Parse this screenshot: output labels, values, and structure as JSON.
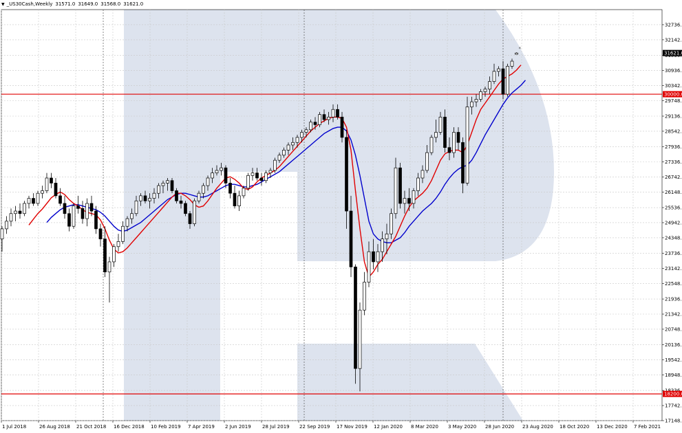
{
  "window": {
    "title": "_US30Cash,Weekly",
    "ohlc": [
      "31571.0",
      "31649.0",
      "31568.0",
      "31621.0"
    ]
  },
  "colors": {
    "background": "#ffffff",
    "grid": "#c8c8c8",
    "candle_border": "#000000",
    "bull_fill": "#ffffff",
    "bear_fill": "#000000",
    "fast_ma": "#e00000",
    "slow_ma": "#0000cc",
    "level_line": "#e00000",
    "level_label_bg": "#e00000",
    "price_label_bg": "#000000",
    "watermark": "#dde3ee"
  },
  "chart_data": {
    "type": "candlestick",
    "symbol": "_US30Cash",
    "timeframe": "Weekly",
    "ylim": [
      17148,
      33330
    ],
    "y_ticks": [
      "32736.0",
      "32142.0",
      "31530.0",
      "30936.0",
      "30342.0",
      "29748.0",
      "29136.0",
      "28542.0",
      "27936.0",
      "27336.0",
      "26742.0",
      "26148.0",
      "25536.0",
      "24942.0",
      "24348.0",
      "23736.0",
      "23142.0",
      "22548.0",
      "21936.0",
      "21342.0",
      "20748.0",
      "20136.0",
      "19542.0",
      "18948.0",
      "18336.0",
      "17742.0",
      "17148.0"
    ],
    "x_ticks": [
      "1 Jul 2018",
      "26 Aug 2018",
      "21 Oct 2018",
      "16 Dec 2018",
      "10 Feb 2019",
      "7 Apr 2019",
      "2 Jun 2019",
      "28 Jul 2019",
      "22 Sep 2019",
      "17 Nov 2019",
      "12 Jan 2020",
      "8 Mar 2020",
      "3 May 2020",
      "28 Jun 2020",
      "23 Aug 2020",
      "18 Oct 2020",
      "13 Dec 2020",
      "7 Feb 2021"
    ],
    "levels": [
      {
        "value": 30000,
        "label": "30000.0"
      },
      {
        "value": 18200,
        "label": "18200.0"
      }
    ],
    "last_price": {
      "value": 31621,
      "label": "31621.0"
    },
    "candles": [
      [
        24300,
        24800,
        23800,
        24700
      ],
      [
        24700,
        25200,
        24500,
        25000
      ],
      [
        25000,
        25500,
        24800,
        25300
      ],
      [
        25300,
        25600,
        25000,
        25400
      ],
      [
        25400,
        25700,
        25100,
        25300
      ],
      [
        25300,
        25800,
        25200,
        25700
      ],
      [
        25700,
        26000,
        25500,
        25900
      ],
      [
        25900,
        26100,
        25600,
        25700
      ],
      [
        25700,
        26200,
        25600,
        26100
      ],
      [
        26100,
        26400,
        25900,
        26200
      ],
      [
        26200,
        26900,
        26100,
        26700
      ],
      [
        26700,
        26900,
        26300,
        26500
      ],
      [
        26500,
        26700,
        25900,
        26000
      ],
      [
        26000,
        26300,
        25600,
        25700
      ],
      [
        25700,
        26000,
        25100,
        25300
      ],
      [
        25300,
        25500,
        24600,
        24800
      ],
      [
        24800,
        25700,
        24700,
        25600
      ],
      [
        25600,
        26000,
        25300,
        25500
      ],
      [
        25500,
        25800,
        24900,
        25100
      ],
      [
        25100,
        25900,
        24800,
        25700
      ],
      [
        25700,
        26000,
        25200,
        25400
      ],
      [
        25400,
        25600,
        24500,
        24700
      ],
      [
        24700,
        24900,
        24000,
        24300
      ],
      [
        24300,
        24800,
        22800,
        23000
      ],
      [
        23000,
        23600,
        21800,
        23400
      ],
      [
        23400,
        24100,
        23200,
        24000
      ],
      [
        24000,
        24500,
        23800,
        24200
      ],
      [
        24200,
        25000,
        24100,
        24800
      ],
      [
        24800,
        25200,
        24600,
        25100
      ],
      [
        25100,
        25500,
        24900,
        25300
      ],
      [
        25300,
        26000,
        25200,
        25800
      ],
      [
        25800,
        26100,
        25600,
        26000
      ],
      [
        26000,
        26200,
        25700,
        25800
      ],
      [
        25800,
        26100,
        25500,
        25900
      ],
      [
        25900,
        26300,
        25700,
        26100
      ],
      [
        26100,
        26500,
        25900,
        26400
      ],
      [
        26400,
        26600,
        26100,
        26500
      ],
      [
        26500,
        26700,
        26200,
        26600
      ],
      [
        26600,
        26700,
        26100,
        26200
      ],
      [
        26200,
        26300,
        25700,
        25800
      ],
      [
        25800,
        26000,
        25500,
        25700
      ],
      [
        25700,
        25800,
        25200,
        25300
      ],
      [
        25300,
        25400,
        24700,
        24900
      ],
      [
        24900,
        25900,
        24800,
        25800
      ],
      [
        25800,
        26200,
        25700,
        26100
      ],
      [
        26100,
        26500,
        25900,
        26400
      ],
      [
        26400,
        26800,
        26200,
        26700
      ],
      [
        26700,
        27100,
        26500,
        26900
      ],
      [
        26900,
        27200,
        26800,
        27000
      ],
      [
        27000,
        27300,
        26800,
        27100
      ],
      [
        27100,
        27200,
        26300,
        26500
      ],
      [
        26500,
        26700,
        25900,
        26100
      ],
      [
        26100,
        26400,
        25500,
        25600
      ],
      [
        25600,
        26200,
        25400,
        26000
      ],
      [
        26000,
        26400,
        25900,
        26300
      ],
      [
        26300,
        26900,
        26200,
        26800
      ],
      [
        26800,
        27100,
        26600,
        26900
      ],
      [
        26900,
        27100,
        26600,
        26700
      ],
      [
        26700,
        26900,
        26400,
        26600
      ],
      [
        26600,
        27000,
        26500,
        26900
      ],
      [
        26900,
        27100,
        26700,
        27000
      ],
      [
        27000,
        27500,
        26900,
        27400
      ],
      [
        27400,
        27700,
        27300,
        27600
      ],
      [
        27600,
        27900,
        27500,
        27800
      ],
      [
        27800,
        28100,
        27600,
        28000
      ],
      [
        28000,
        28300,
        27800,
        28100
      ],
      [
        28100,
        28400,
        27900,
        28300
      ],
      [
        28300,
        28600,
        28100,
        28500
      ],
      [
        28500,
        28700,
        28300,
        28600
      ],
      [
        28600,
        29000,
        28500,
        28900
      ],
      [
        28900,
        29100,
        28600,
        28800
      ],
      [
        28800,
        29300,
        28700,
        29200
      ],
      [
        29200,
        29400,
        28900,
        29000
      ],
      [
        29000,
        29300,
        28800,
        29100
      ],
      [
        29100,
        29600,
        28900,
        29400
      ],
      [
        29400,
        29600,
        29000,
        29100
      ],
      [
        29100,
        29300,
        28100,
        28300
      ],
      [
        28300,
        28600,
        24700,
        25400
      ],
      [
        25400,
        26000,
        22800,
        23200
      ],
      [
        23200,
        23300,
        18600,
        19200
      ],
      [
        19200,
        21800,
        18300,
        21500
      ],
      [
        21500,
        23000,
        21300,
        22600
      ],
      [
        22600,
        24200,
        22400,
        23800
      ],
      [
        23800,
        24300,
        23100,
        23400
      ],
      [
        23400,
        24100,
        23000,
        23800
      ],
      [
        23800,
        24600,
        23400,
        24300
      ],
      [
        24300,
        24900,
        23700,
        24500
      ],
      [
        24500,
        25500,
        24300,
        25300
      ],
      [
        25300,
        27500,
        25100,
        27100
      ],
      [
        27100,
        27300,
        25500,
        25700
      ],
      [
        25700,
        26200,
        25300,
        25900
      ],
      [
        25900,
        26300,
        25400,
        25700
      ],
      [
        25700,
        26300,
        25500,
        26200
      ],
      [
        26200,
        26900,
        26000,
        26700
      ],
      [
        26700,
        27200,
        26500,
        27000
      ],
      [
        27000,
        28000,
        26900,
        27700
      ],
      [
        27700,
        28400,
        27600,
        28300
      ],
      [
        28300,
        29000,
        28100,
        28500
      ],
      [
        28500,
        29300,
        28400,
        29100
      ],
      [
        29100,
        29400,
        27700,
        27900
      ],
      [
        27900,
        28300,
        27400,
        27700
      ],
      [
        27700,
        28700,
        27500,
        28500
      ],
      [
        28500,
        28700,
        27800,
        28100
      ],
      [
        28100,
        28300,
        26100,
        26500
      ],
      [
        26500,
        29900,
        26400,
        29500
      ],
      [
        29500,
        29900,
        29200,
        29700
      ],
      [
        29700,
        30000,
        29500,
        29800
      ],
      [
        29800,
        30200,
        29700,
        30100
      ],
      [
        30100,
        30300,
        29900,
        30200
      ],
      [
        30200,
        30700,
        30000,
        30500
      ],
      [
        30500,
        31200,
        30400,
        30900
      ],
      [
        30900,
        31100,
        30700,
        31000
      ],
      [
        31000,
        31300,
        29800,
        30000
      ],
      [
        30000,
        31200,
        29900,
        31100
      ],
      [
        31100,
        31400,
        31000,
        31300
      ],
      [
        31571,
        31649,
        31568,
        31621
      ]
    ],
    "fast_ma": [
      null,
      null,
      null,
      null,
      null,
      null,
      24850,
      25080,
      25300,
      25480,
      25700,
      25920,
      26050,
      26150,
      26050,
      25850,
      25700,
      25600,
      25450,
      25350,
      25300,
      25250,
      25050,
      24700,
      24250,
      23900,
      23750,
      23800,
      23950,
      24150,
      24350,
      24550,
      24750,
      24950,
      25150,
      25350,
      25550,
      25750,
      25950,
      26100,
      26100,
      26000,
      25850,
      25650,
      25550,
      25600,
      25800,
      26050,
      26300,
      26500,
      26700,
      26750,
      26650,
      26500,
      26300,
      26250,
      26350,
      26550,
      26700,
      26800,
      26900,
      27000,
      27150,
      27350,
      27550,
      27750,
      27950,
      28150,
      28350,
      28550,
      28700,
      28850,
      28950,
      29050,
      29100,
      29100,
      29050,
      28700,
      27800,
      26200,
      24700,
      23400,
      22800,
      23000,
      23300,
      23500,
      23800,
      24100,
      24400,
      24800,
      25200,
      25550,
      25800,
      25950,
      26100,
      26300,
      26600,
      27000,
      27400,
      27650,
      27750,
      27800,
      27800,
      27700,
      28000,
      28500,
      29000,
      29400,
      29650,
      29900,
      30150,
      30400,
      30600,
      30700,
      30800,
      30950,
      31150
    ],
    "slow_ma": [
      null,
      null,
      null,
      null,
      null,
      null,
      null,
      null,
      null,
      null,
      24950,
      25150,
      25300,
      25450,
      25550,
      25600,
      25650,
      25650,
      25600,
      25550,
      25500,
      25450,
      25350,
      25200,
      25000,
      24800,
      24650,
      24600,
      24650,
      24750,
      24850,
      24950,
      25100,
      25250,
      25400,
      25550,
      25700,
      25850,
      25950,
      26050,
      26100,
      26100,
      26050,
      26000,
      25950,
      25950,
      26000,
      26100,
      26200,
      26300,
      26400,
      26450,
      26450,
      26400,
      26350,
      26350,
      26400,
      26450,
      26550,
      26650,
      26750,
      26850,
      26950,
      27100,
      27250,
      27400,
      27550,
      27700,
      27850,
      28000,
      28150,
      28300,
      28450,
      28550,
      28650,
      28700,
      28700,
      28550,
      28200,
      27600,
      26800,
      25900,
      25000,
      24500,
      24300,
      24200,
      24150,
      24150,
      24250,
      24350,
      24550,
      24800,
      25000,
      25200,
      25400,
      25550,
      25700,
      25900,
      26150,
      26450,
      26700,
      26900,
      27050,
      27150,
      27200,
      27400,
      27700,
      28050,
      28400,
      28700,
      29000,
      29300,
      29600,
      29850,
      30050,
      30200,
      30350,
      30550
    ]
  }
}
